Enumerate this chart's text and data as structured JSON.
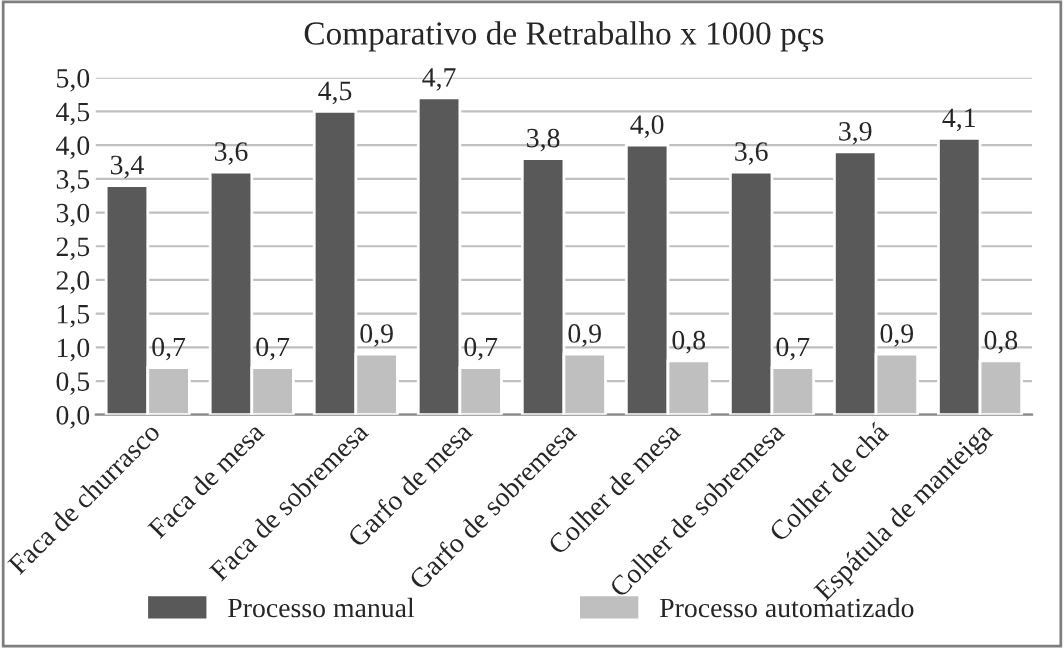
{
  "chart_data": {
    "type": "bar",
    "title": "Comparativo de Retrabalho x 1000 pçs",
    "categories": [
      "Faca de churrasco",
      "Faca de mesa",
      "Faca de sobremesa",
      "Garfo de mesa",
      "Garfo de sobremesa",
      "Colher de mesa",
      "Colher de sobremesa",
      "Colher de chá",
      "Espátula de manteiga"
    ],
    "series": [
      {
        "name": "Processo manual",
        "color": "#595959",
        "values": [
          3.4,
          3.6,
          4.5,
          4.7,
          3.8,
          4.0,
          3.6,
          3.9,
          4.1
        ],
        "value_labels": [
          "3,4",
          "3,6",
          "4,5",
          "4,7",
          "3,8",
          "4,0",
          "3,6",
          "3,9",
          "4,1"
        ]
      },
      {
        "name": "Processo automatizado",
        "color": "#bfbfbf",
        "values": [
          0.7,
          0.7,
          0.9,
          0.7,
          0.9,
          0.8,
          0.7,
          0.9,
          0.8
        ],
        "value_labels": [
          "0,7",
          "0,7",
          "0,9",
          "0,7",
          "0,9",
          "0,8",
          "0,7",
          "0,9",
          "0,8"
        ]
      }
    ],
    "ylim": [
      0,
      5
    ],
    "yticks": [
      {
        "value": 0,
        "label": "0,0"
      },
      {
        "value": 0.5,
        "label": "0,5"
      },
      {
        "value": 1,
        "label": "1,0"
      },
      {
        "value": 1.5,
        "label": "1,5"
      },
      {
        "value": 2,
        "label": "2,0"
      },
      {
        "value": 2.5,
        "label": "2,5"
      },
      {
        "value": 3,
        "label": "3,0"
      },
      {
        "value": 3.5,
        "label": "3,5"
      },
      {
        "value": 4,
        "label": "4,0"
      },
      {
        "value": 4.5,
        "label": "4,5"
      },
      {
        "value": 5,
        "label": "5,0"
      }
    ],
    "grid": "y",
    "legend": "bottom"
  }
}
